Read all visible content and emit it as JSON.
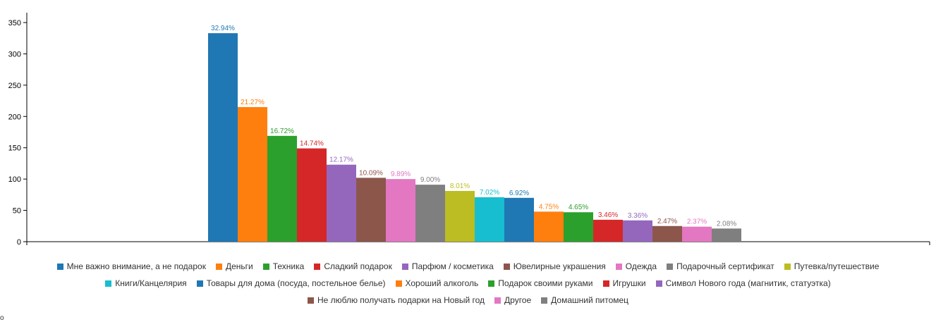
{
  "chart_data": {
    "type": "bar",
    "ylim": [
      0,
      350
    ],
    "yticks": [
      0,
      50,
      100,
      150,
      200,
      250,
      300,
      350
    ],
    "grid": false,
    "legend_position": "bottom",
    "series": [
      {
        "name": "Мне важно внимание, а не подарок",
        "value": 333,
        "label": "32.94%",
        "color": "#1f77b4"
      },
      {
        "name": "Деньги",
        "value": 215,
        "label": "21.27%",
        "color": "#ff7f0e"
      },
      {
        "name": "Техника",
        "value": 169,
        "label": "16.72%",
        "color": "#2ca02c"
      },
      {
        "name": "Сладкий подарок",
        "value": 149,
        "label": "14.74%",
        "color": "#d62728"
      },
      {
        "name": "Парфюм / косметика",
        "value": 123,
        "label": "12.17%",
        "color": "#9467bd"
      },
      {
        "name": "Ювелирные украшения",
        "value": 102,
        "label": "10.09%",
        "color": "#8c564b"
      },
      {
        "name": "Одежда",
        "value": 100,
        "label": "9.89%",
        "color": "#e377c2"
      },
      {
        "name": "Подарочный сертификат",
        "value": 91,
        "label": "9.00%",
        "color": "#7f7f7f"
      },
      {
        "name": "Путевка/путешествие",
        "value": 81,
        "label": "8.01%",
        "color": "#bcbd22"
      },
      {
        "name": "Книги/Канцелярия",
        "value": 71,
        "label": "7.02%",
        "color": "#17becf"
      },
      {
        "name": "Товары для дома (посуда, постельное белье)",
        "value": 70,
        "label": "6.92%",
        "color": "#1f77b4"
      },
      {
        "name": "Хороший алкоголь",
        "value": 48,
        "label": "4.75%",
        "color": "#ff7f0e"
      },
      {
        "name": "Подарок своими руками",
        "value": 47,
        "label": "4.65%",
        "color": "#2ca02c"
      },
      {
        "name": "Игрушки",
        "value": 35,
        "label": "3.46%",
        "color": "#d62728"
      },
      {
        "name": "Символ Нового года (магнитик, статуэтка)",
        "value": 34,
        "label": "3.36%",
        "color": "#9467bd"
      },
      {
        "name": "Не люблю получать подарки на Новый год",
        "value": 25,
        "label": "2.47%",
        "color": "#8c564b"
      },
      {
        "name": "Другое",
        "value": 24,
        "label": "2.37%",
        "color": "#e377c2"
      },
      {
        "name": "Домашний питомец",
        "value": 21,
        "label": "2.08%",
        "color": "#7f7f7f"
      }
    ]
  },
  "corner_text": "o"
}
